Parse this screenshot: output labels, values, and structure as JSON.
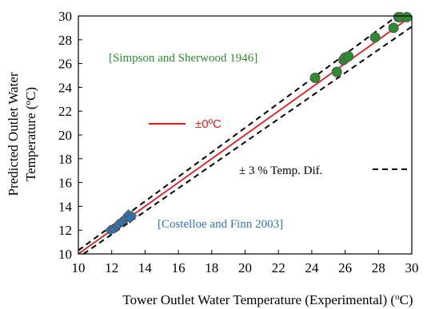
{
  "chart_data": {
    "type": "scatter",
    "xlabel_main": "Tower Outlet Water Temperature (Experimental) (",
    "xlabel_sup": "o",
    "xlabel_end": "C)",
    "ylabel_line1": "Predicted Outlet Water",
    "ylabel_line2_main": "Temperature (",
    "ylabel_line2_sup": "o",
    "ylabel_line2_end": "C)",
    "xlim": [
      10,
      30
    ],
    "ylim": [
      10,
      30
    ],
    "x_ticks": [
      "10",
      "12",
      "14",
      "16",
      "18",
      "20",
      "22",
      "24",
      "26",
      "28",
      "30"
    ],
    "y_ticks": [
      "10",
      "12",
      "14",
      "16",
      "18",
      "20",
      "22",
      "24",
      "26",
      "28",
      "30"
    ],
    "grid": false,
    "series": [
      {
        "name": "[Simpson and Sherwood 1946]",
        "marker": "circle",
        "color": "#2e8b2e",
        "points": [
          [
            24.2,
            24.8
          ],
          [
            25.5,
            25.3
          ],
          [
            25.9,
            26.3
          ],
          [
            26.0,
            26.5
          ],
          [
            26.2,
            26.6
          ],
          [
            27.8,
            28.2
          ],
          [
            28.9,
            29.0
          ],
          [
            29.2,
            29.9
          ],
          [
            29.3,
            29.9
          ],
          [
            29.7,
            29.9
          ]
        ]
      },
      {
        "name": "[Costelloe and Finn 2003]",
        "marker": "diamond",
        "color": "#2e75b6",
        "points": [
          [
            11.9,
            12.0
          ],
          [
            12.1,
            12.1
          ],
          [
            12.3,
            12.3
          ],
          [
            12.4,
            12.5
          ],
          [
            12.6,
            12.7
          ],
          [
            12.8,
            12.9
          ],
          [
            12.9,
            13.1
          ],
          [
            13.0,
            13.3
          ],
          [
            13.2,
            13.2
          ],
          [
            13.1,
            13.0
          ]
        ]
      }
    ],
    "reference_lines": [
      {
        "name": "±0ºC",
        "type": "identity",
        "color": "#e31a1c",
        "style": "solid",
        "factor": 1.0
      },
      {
        "name": "± 3 % Temp. Dif.",
        "type": "band",
        "color": "#000000",
        "style": "dashed",
        "factors": [
          1.03,
          0.97
        ]
      }
    ],
    "annotations": {
      "simpson": "[Simpson and Sherwood 1946]",
      "costelloe": "[Costelloe and Finn 2003]",
      "legend_red": "±0ºC",
      "legend_dashed": "± 3 % Temp. Dif."
    },
    "colors": {
      "simpson_text": "#2e8b2e",
      "costelloe_text": "#2e75b6",
      "red_line": "#e31a1c",
      "marker_edge": "#555555"
    }
  }
}
